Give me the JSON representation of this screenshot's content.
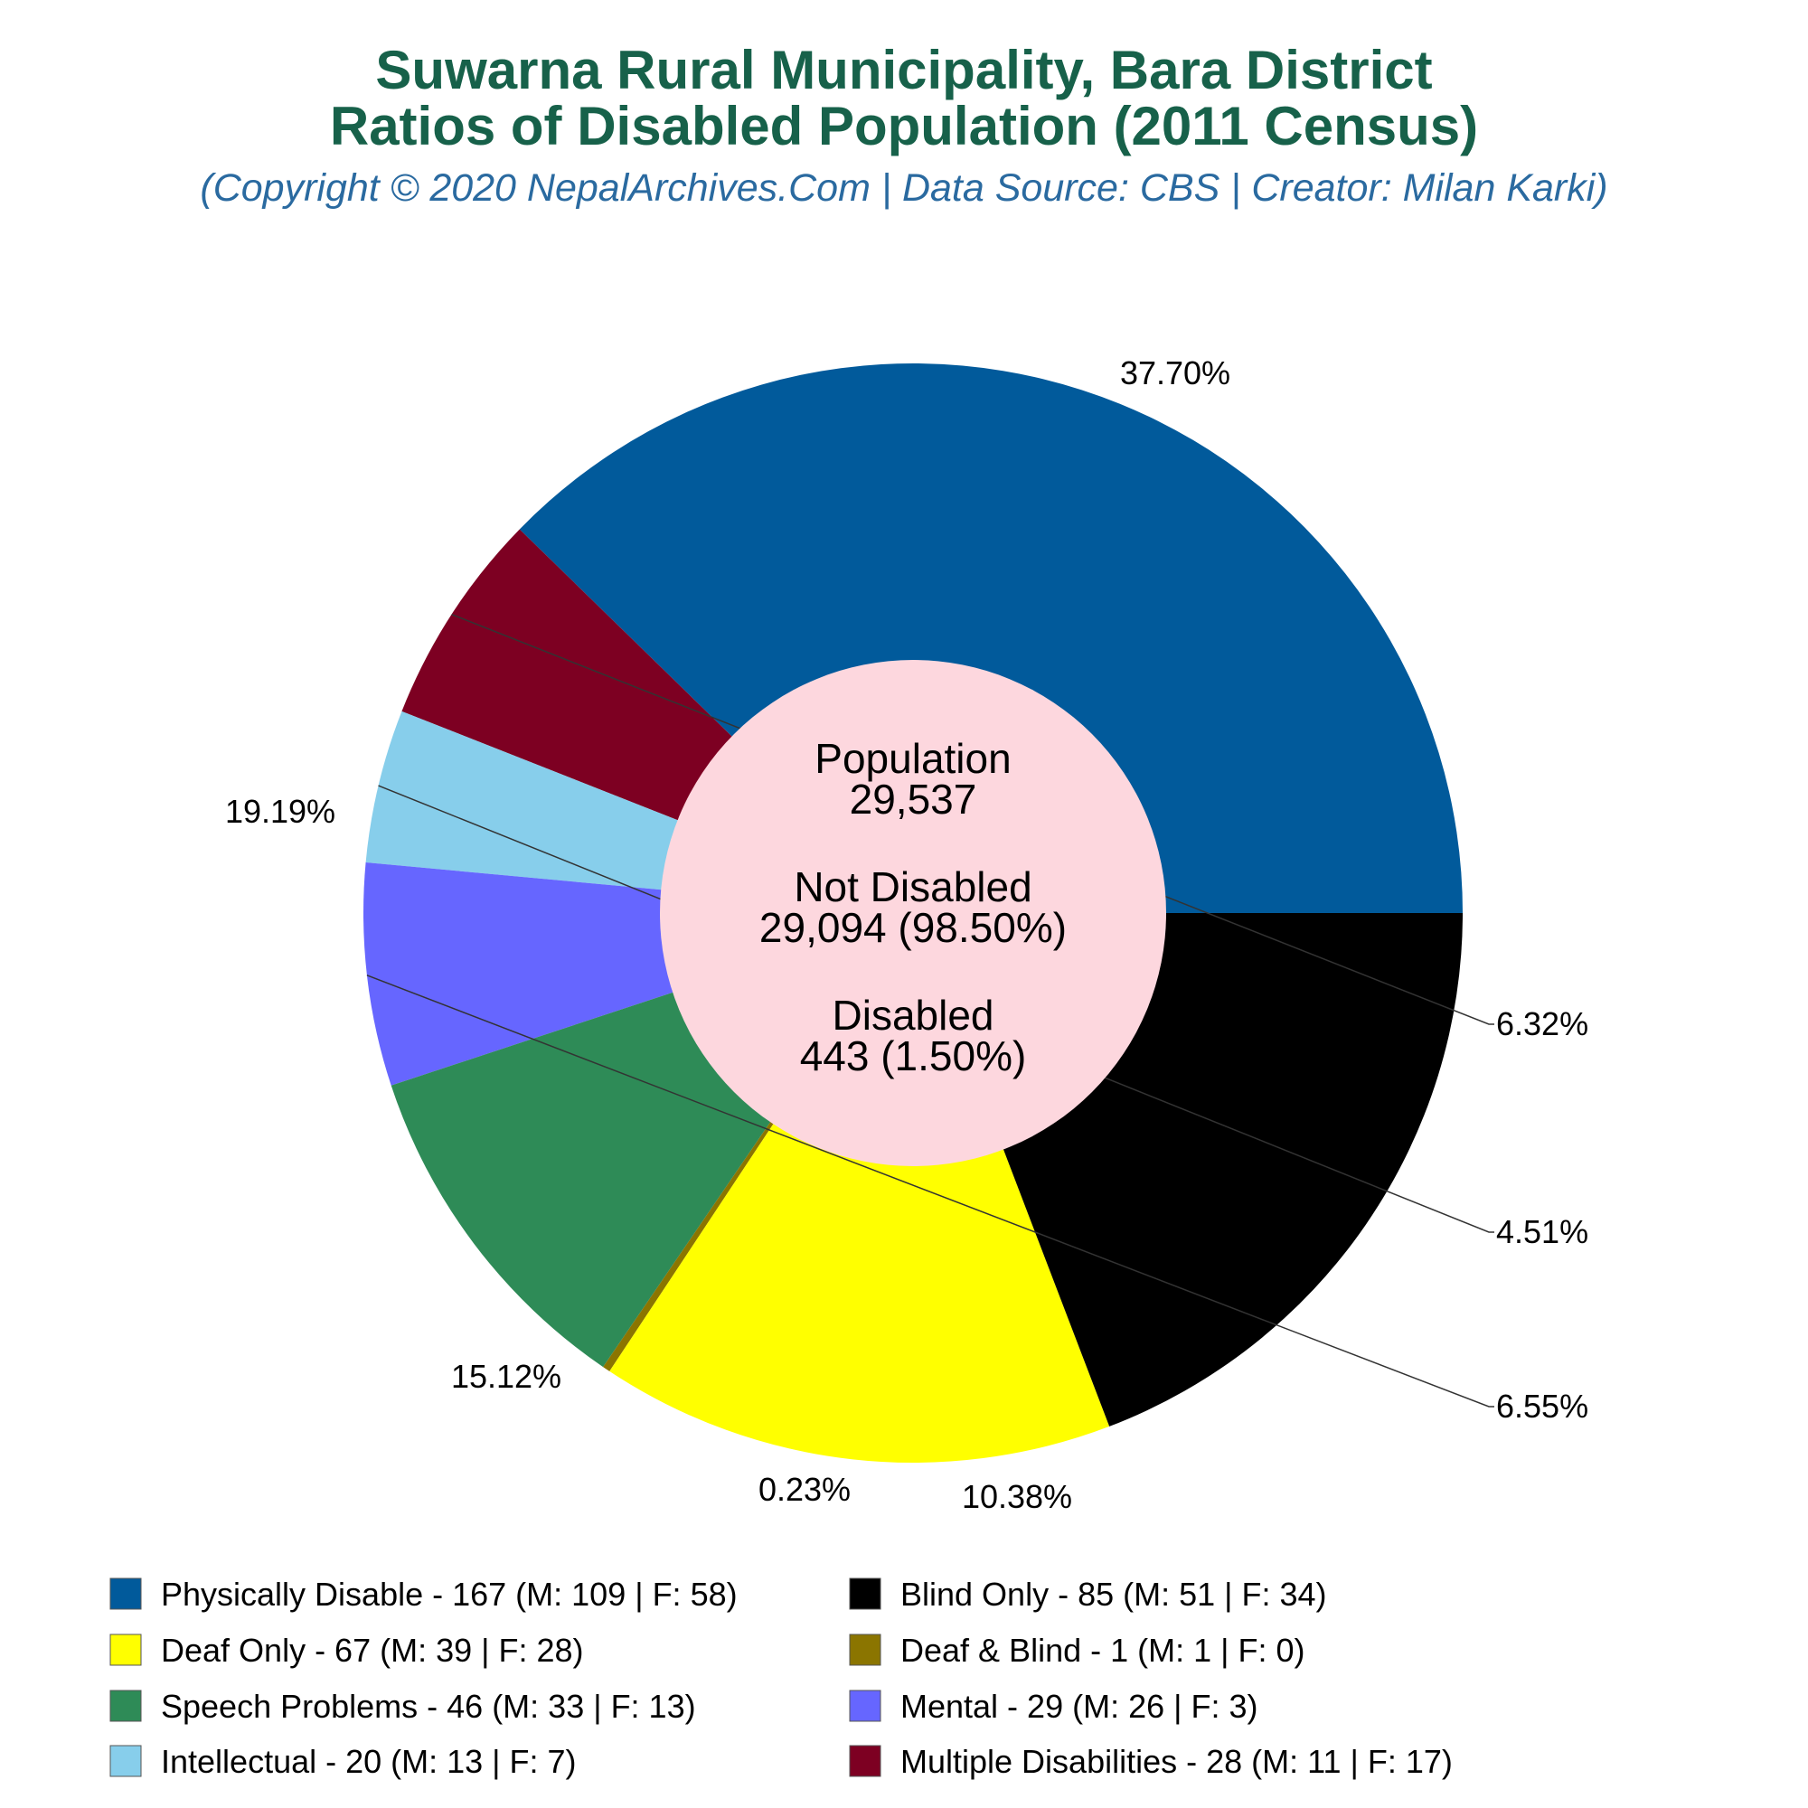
{
  "title_line1": "Suwarna Rural Municipality, Bara District",
  "title_line2": "Ratios of Disabled Population (2011 Census)",
  "subtitle": "(Copyright © 2020 NepalArchives.Com | Data Source: CBS | Creator: Milan Karki)",
  "center": {
    "population_label": "Population",
    "population_value": "29,537",
    "not_disabled_label": "Not Disabled",
    "not_disabled_value": "29,094 (98.50%)",
    "disabled_label": "Disabled",
    "disabled_value": "443 (1.50%)"
  },
  "chart_data": {
    "type": "pie",
    "title": "Suwarna Rural Municipality, Bara District Ratios of Disabled Population (2011 Census)",
    "subtitle": "(Copyright © 2020 NepalArchives.Com | Data Source: CBS | Creator: Milan Karki)",
    "total_disabled": 443,
    "legend_position": "bottom",
    "slices": [
      {
        "label": "Physically Disable",
        "value": 167,
        "male": 109,
        "female": 58,
        "percent": "37.70%",
        "color": "#015a9b",
        "legend": "Physically Disable - 167 (M: 109 | F: 58)"
      },
      {
        "label": "Multiple Disabilities",
        "value": 28,
        "male": 11,
        "female": 17,
        "percent": "6.32%",
        "color": "#7d0022",
        "legend": "Multiple Disabilities - 28 (M: 11 | F: 17)"
      },
      {
        "label": "Intellectual",
        "value": 20,
        "male": 13,
        "female": 7,
        "percent": "4.51%",
        "color": "#87ceeb",
        "legend": "Intellectual - 20 (M: 13 | F: 7)"
      },
      {
        "label": "Mental",
        "value": 29,
        "male": 26,
        "female": 3,
        "percent": "6.55%",
        "color": "#6666ff",
        "legend": "Mental - 29 (M: 26 | F: 3)"
      },
      {
        "label": "Speech Problems",
        "value": 46,
        "male": 33,
        "female": 13,
        "percent": "10.38%",
        "color": "#2e8b57",
        "legend": "Speech Problems - 46 (M: 33 | F: 13)"
      },
      {
        "label": "Deaf & Blind",
        "value": 1,
        "male": 1,
        "female": 0,
        "percent": "0.23%",
        "color": "#8b7500",
        "legend": "Deaf & Blind - 1 (M: 1 | F: 0)"
      },
      {
        "label": "Deaf Only",
        "value": 67,
        "male": 39,
        "female": 28,
        "percent": "15.12%",
        "color": "#ffff00",
        "legend": "Deaf Only - 67 (M: 39 | F: 28)"
      },
      {
        "label": "Blind Only",
        "value": 85,
        "male": 51,
        "female": 34,
        "percent": "19.19%",
        "color": "#000000",
        "legend": "Blind Only - 85 (M: 51 | F: 34)"
      }
    ],
    "legend_order": [
      "Physically Disable",
      "Blind Only",
      "Deaf Only",
      "Deaf & Blind",
      "Speech Problems",
      "Mental",
      "Intellectual",
      "Multiple Disabilities"
    ]
  },
  "colors": {
    "title": "#17614a",
    "subtitle": "#2a6aa0",
    "center_fill": "#fdd7de"
  }
}
